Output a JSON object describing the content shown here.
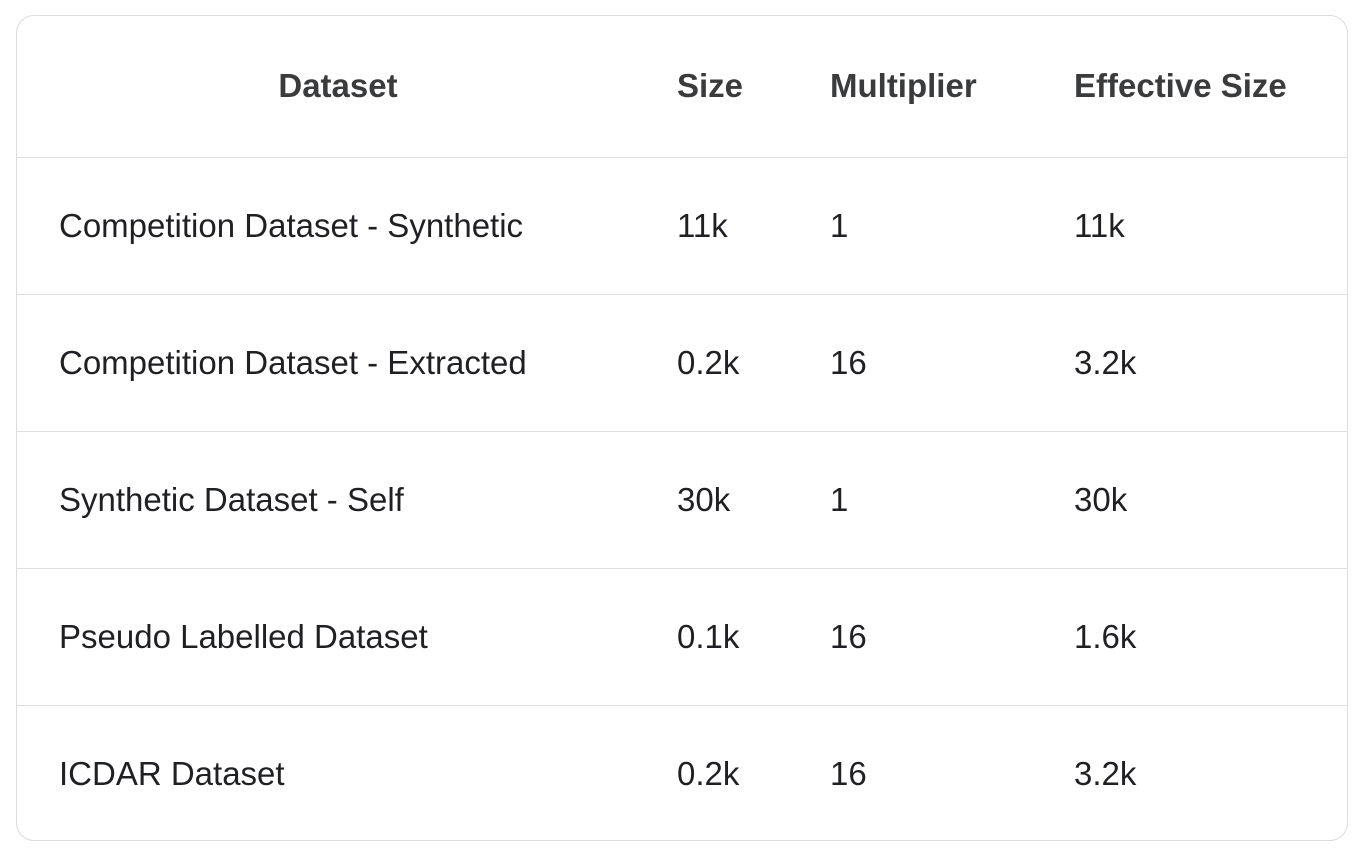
{
  "table": {
    "headers": {
      "dataset": "Dataset",
      "size": "Size",
      "multiplier": "Multiplier",
      "effective_size": "Effective Size"
    },
    "rows": [
      {
        "dataset": "Competition Dataset - Synthetic",
        "size": "11k",
        "multiplier": "1",
        "effective_size": "11k"
      },
      {
        "dataset": "Competition Dataset - Extracted",
        "size": "0.2k",
        "multiplier": "16",
        "effective_size": "3.2k"
      },
      {
        "dataset": "Synthetic Dataset - Self",
        "size": "30k",
        "multiplier": "1",
        "effective_size": "30k"
      },
      {
        "dataset": "Pseudo Labelled Dataset",
        "size": "0.1k",
        "multiplier": "16",
        "effective_size": "1.6k"
      },
      {
        "dataset": "ICDAR Dataset",
        "size": "0.2k",
        "multiplier": "16",
        "effective_size": "3.2k"
      }
    ]
  }
}
